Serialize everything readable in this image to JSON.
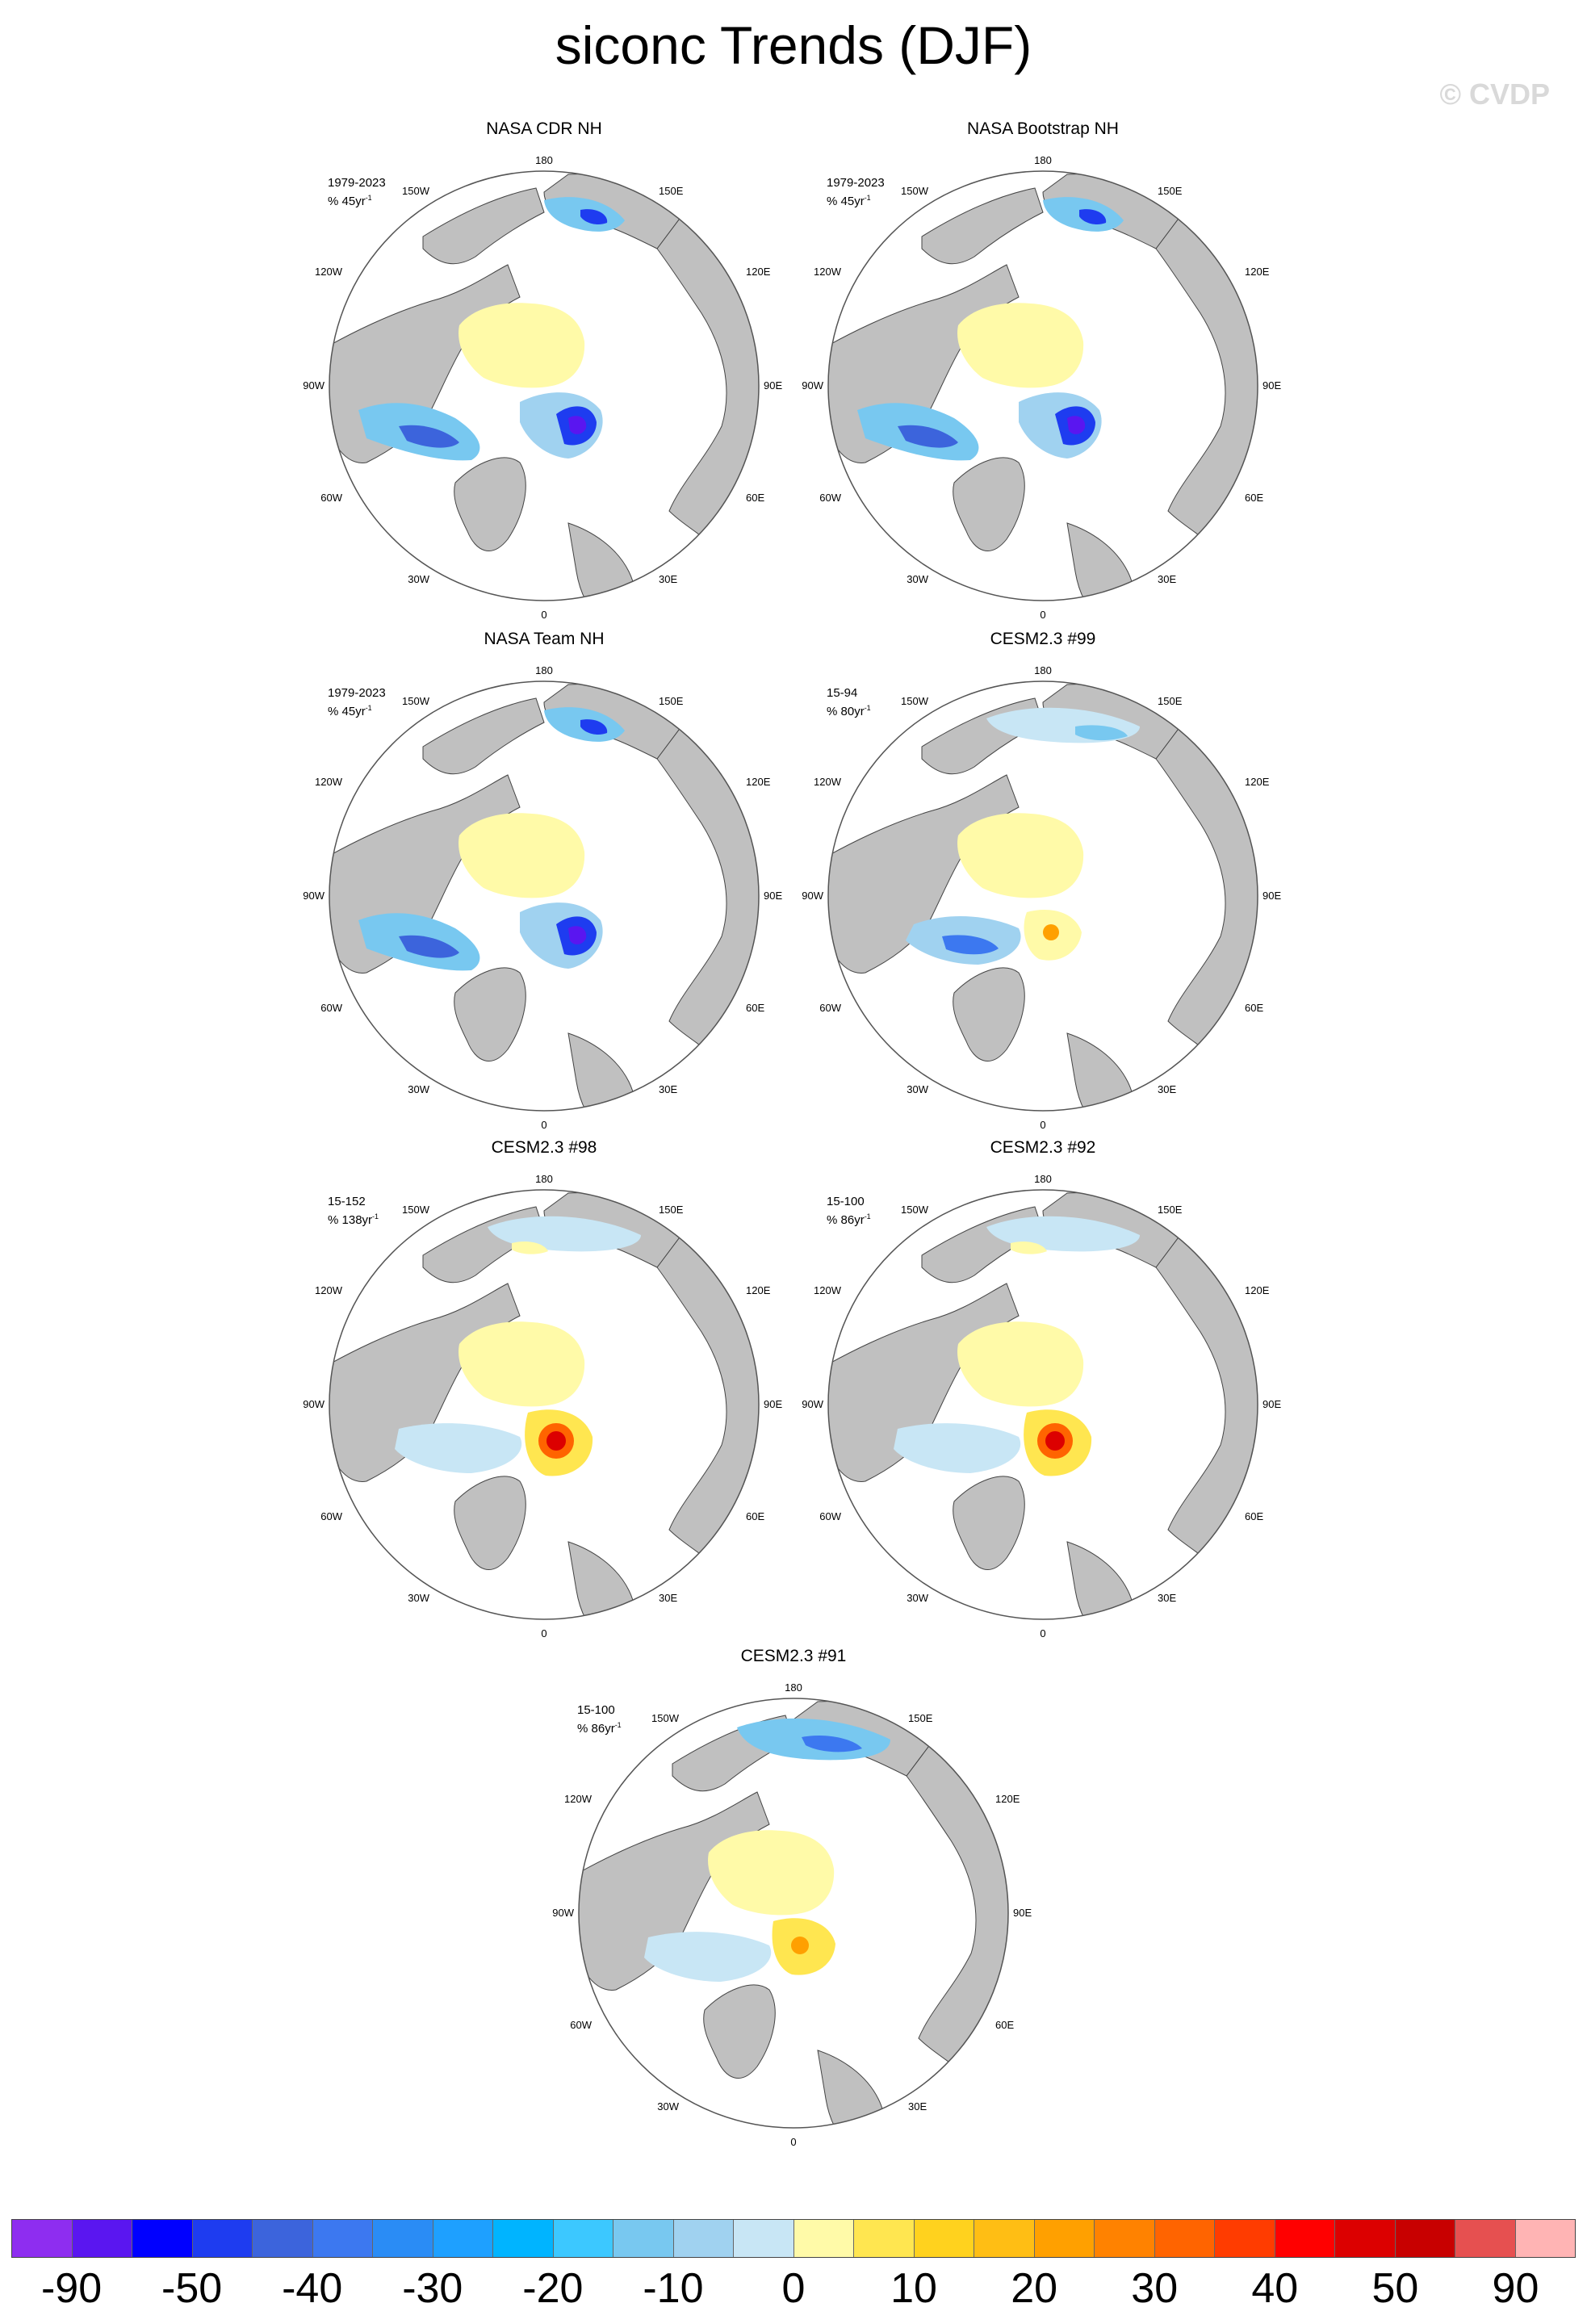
{
  "title": "siconc Trends (DJF)",
  "watermark": "© CVDP",
  "longitude_labels": {
    "top": "180",
    "tl": "150W",
    "tr": "150E",
    "ul": "120W",
    "ur": "120E",
    "left": "90W",
    "right": "90E",
    "ll": "60W",
    "lr": "60E",
    "bl": "30W",
    "br": "30E",
    "bottom": "0"
  },
  "colors": {
    "land": "#c0c0c0",
    "ocean": "#ffffff",
    "neutral_positive": "#fffaa8",
    "light_negative": "#b9e0f5"
  },
  "panels": [
    {
      "title": "NASA CDR NH",
      "period": "1979-2023",
      "unit_prefix": "% 45yr",
      "sup": "-1",
      "anomaly": "strong-negative"
    },
    {
      "title": "NASA Bootstrap NH",
      "period": "1979-2023",
      "unit_prefix": "% 45yr",
      "sup": "-1",
      "anomaly": "strong-negative"
    },
    {
      "title": "NASA Team NH",
      "period": "1979-2023",
      "unit_prefix": "% 45yr",
      "sup": "-1",
      "anomaly": "strong-negative"
    },
    {
      "title": "CESM2.3 #99",
      "period": "15-94",
      "unit_prefix": "% 80yr",
      "sup": "-1",
      "anomaly": "mixed"
    },
    {
      "title": "CESM2.3 #98",
      "period": "15-152",
      "unit_prefix": "% 138yr",
      "sup": "-1",
      "anomaly": "positive"
    },
    {
      "title": "CESM2.3 #92",
      "period": "15-100",
      "unit_prefix": "% 86yr",
      "sup": "-1",
      "anomaly": "positive"
    },
    {
      "title": "CESM2.3 #91",
      "period": "15-100",
      "unit_prefix": "% 86yr",
      "sup": "-1",
      "anomaly": "weak-positive"
    }
  ],
  "colorbar": {
    "colors": [
      "#8e2df0",
      "#5a16f0",
      "#0000ff",
      "#1e3cf0",
      "#3c64dc",
      "#3c78f0",
      "#2a8cf5",
      "#1ea0ff",
      "#00b4ff",
      "#3cc8ff",
      "#78c8f0",
      "#a0d2f0",
      "#c8e6f5",
      "#fffaa8",
      "#ffe650",
      "#ffd21e",
      "#ffbe14",
      "#ffa000",
      "#ff8200",
      "#ff6400",
      "#ff3c00",
      "#ff0000",
      "#dc0000",
      "#c80000",
      "#e65050",
      "#ffb4b4"
    ],
    "labels": [
      {
        "text": "-90",
        "index": 1
      },
      {
        "text": "-50",
        "index": 3
      },
      {
        "text": "-40",
        "index": 5
      },
      {
        "text": "-30",
        "index": 7
      },
      {
        "text": "-20",
        "index": 9
      },
      {
        "text": "-10",
        "index": 11
      },
      {
        "text": "0",
        "index": 13
      },
      {
        "text": "10",
        "index": 15
      },
      {
        "text": "20",
        "index": 17
      },
      {
        "text": "30",
        "index": 19
      },
      {
        "text": "40",
        "index": 21
      },
      {
        "text": "50",
        "index": 23
      },
      {
        "text": "90",
        "index": 25
      }
    ]
  }
}
